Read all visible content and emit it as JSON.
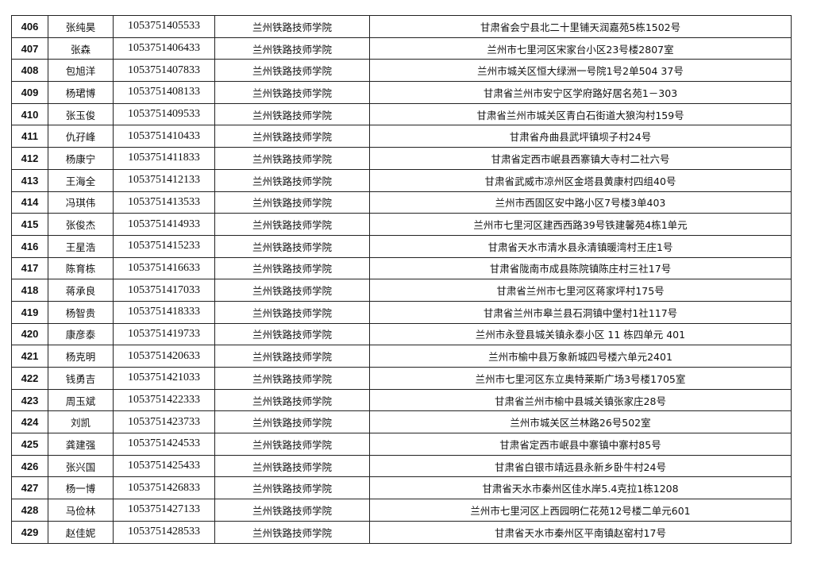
{
  "table": {
    "rows": [
      {
        "no": "406",
        "name": "张纯昊",
        "id": "1053751405533",
        "school": "兰州铁路技师学院",
        "address": "甘肃省会宁县北二十里铺天润嘉苑5栋1502号"
      },
      {
        "no": "407",
        "name": "张森",
        "id": "1053751406433",
        "school": "兰州铁路技师学院",
        "address": "兰州市七里河区宋家台小区23号楼2807室"
      },
      {
        "no": "408",
        "name": "包旭洋",
        "id": "1053751407833",
        "school": "兰州铁路技师学院",
        "address": "兰州市城关区恒大绿洲一号院1号2单504 37号"
      },
      {
        "no": "409",
        "name": "杨珺博",
        "id": "1053751408133",
        "school": "兰州铁路技师学院",
        "address": "甘肃省兰州市安宁区学府路好居名苑1－303"
      },
      {
        "no": "410",
        "name": "张玉俊",
        "id": "1053751409533",
        "school": "兰州铁路技师学院",
        "address": "甘肃省兰州市城关区青白石街道大狼沟村159号"
      },
      {
        "no": "411",
        "name": "仇孖峰",
        "id": "1053751410433",
        "school": "兰州铁路技师学院",
        "address": "甘肃省舟曲县武坪镇坝子村24号"
      },
      {
        "no": "412",
        "name": "杨康宁",
        "id": "1053751411833",
        "school": "兰州铁路技师学院",
        "address": "甘肃省定西市岷县西寨镇大寺村二社六号"
      },
      {
        "no": "413",
        "name": "王海全",
        "id": "1053751412133",
        "school": "兰州铁路技师学院",
        "address": "甘肃省武威市凉州区金塔县黄康村四组40号"
      },
      {
        "no": "414",
        "name": "冯琪伟",
        "id": "1053751413533",
        "school": "兰州铁路技师学院",
        "address": "兰州市西固区安中路小区7号楼3单403"
      },
      {
        "no": "415",
        "name": "张俊杰",
        "id": "1053751414933",
        "school": "兰州铁路技师学院",
        "address": "兰州市七里河区建西西路39号铁建馨苑4栋1单元"
      },
      {
        "no": "416",
        "name": "王星浩",
        "id": "1053751415233",
        "school": "兰州铁路技师学院",
        "address": "甘肃省天水市清水县永清镇暖湾村王庄1号"
      },
      {
        "no": "417",
        "name": "陈育栋",
        "id": "1053751416633",
        "school": "兰州铁路技师学院",
        "address": "甘肃省陇南市成县陈院镇陈庄村三社17号"
      },
      {
        "no": "418",
        "name": "蒋承良",
        "id": "1053751417033",
        "school": "兰州铁路技师学院",
        "address": "甘肃省兰州市七里河区蒋家坪村175号"
      },
      {
        "no": "419",
        "name": "杨智贵",
        "id": "1053751418333",
        "school": "兰州铁路技师学院",
        "address": "甘肃省兰州市皋兰县石洞镇中堡村1社117号"
      },
      {
        "no": "420",
        "name": "康彦泰",
        "id": "1053751419733",
        "school": "兰州铁路技师学院",
        "address": "兰州市永登县城关镇永泰小区 11 栋四单元 401"
      },
      {
        "no": "421",
        "name": "杨克明",
        "id": "1053751420633",
        "school": "兰州铁路技师学院",
        "address": "兰州市榆中县万象新城四号楼六单元2401"
      },
      {
        "no": "422",
        "name": "钱勇吉",
        "id": "1053751421033",
        "school": "兰州铁路技师学院",
        "address": "兰州市七里河区东立奥特莱斯广场3号楼1705室"
      },
      {
        "no": "423",
        "name": "周玉斌",
        "id": "1053751422333",
        "school": "兰州铁路技师学院",
        "address": "甘肃省兰州市榆中县城关镇张家庄28号"
      },
      {
        "no": "424",
        "name": "刘凯",
        "id": "1053751423733",
        "school": "兰州铁路技师学院",
        "address": "兰州市城关区兰林路26号502室"
      },
      {
        "no": "425",
        "name": "龚建强",
        "id": "1053751424533",
        "school": "兰州铁路技师学院",
        "address": "甘肃省定西市岷县中寨镇中寨村85号"
      },
      {
        "no": "426",
        "name": "张兴国",
        "id": "1053751425433",
        "school": "兰州铁路技师学院",
        "address": "甘肃省白银市靖远县永新乡卧牛村24号"
      },
      {
        "no": "427",
        "name": "杨一博",
        "id": "1053751426833",
        "school": "兰州铁路技师学院",
        "address": "甘肃省天水市秦州区佳水岸5.4克拉1栋1208"
      },
      {
        "no": "428",
        "name": "马俭林",
        "id": "1053751427133",
        "school": "兰州铁路技师学院",
        "address": "兰州市七里河区上西园明仁花苑12号楼二单元601"
      },
      {
        "no": "429",
        "name": "赵佳妮",
        "id": "1053751428533",
        "school": "兰州铁路技师学院",
        "address": "甘肃省天水市秦州区平南镇赵窑村17号"
      }
    ]
  }
}
